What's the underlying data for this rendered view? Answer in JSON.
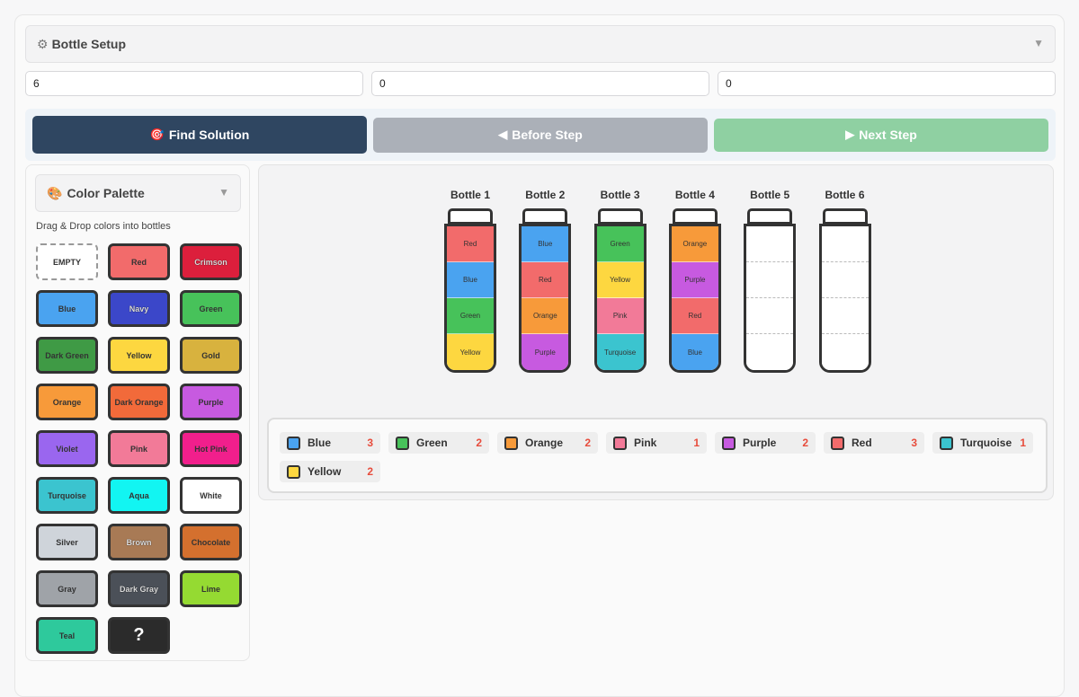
{
  "setup": {
    "icon": "gear-icon",
    "title": "Bottle Setup"
  },
  "inputs": [
    "6",
    "0",
    "0"
  ],
  "actions": {
    "find": {
      "icon": "target-icon",
      "label": "Find Solution"
    },
    "before": {
      "icon": "play-left-icon",
      "label": "Before Step"
    },
    "next": {
      "icon": "play-right-icon",
      "label": "Next Step"
    }
  },
  "palette": {
    "icon": "palette-icon",
    "title": "Color Palette",
    "hint": "Drag & Drop colors into bottles",
    "swatches": [
      {
        "label": "EMPTY",
        "color": "#ffffff"
      },
      {
        "label": "Red",
        "color": "#f26b6b"
      },
      {
        "label": "Crimson",
        "color": "#dc1f3c"
      },
      {
        "label": "Blue",
        "color": "#4aa3f0"
      },
      {
        "label": "Navy",
        "color": "#3b47c9"
      },
      {
        "label": "Green",
        "color": "#47c25a"
      },
      {
        "label": "Dark Green",
        "color": "#3f9a45"
      },
      {
        "label": "Yellow",
        "color": "#fdd740"
      },
      {
        "label": "Gold",
        "color": "#d8b23e"
      },
      {
        "label": "Orange",
        "color": "#f79a3a"
      },
      {
        "label": "Dark Orange",
        "color": "#f26a3a"
      },
      {
        "label": "Purple",
        "color": "#c75ae0"
      },
      {
        "label": "Violet",
        "color": "#9a66ef"
      },
      {
        "label": "Pink",
        "color": "#f27a98"
      },
      {
        "label": "Hot Pink",
        "color": "#f11f8c"
      },
      {
        "label": "Turquoise",
        "color": "#3bc4cf"
      },
      {
        "label": "Aqua",
        "color": "#12f5f2"
      },
      {
        "label": "White",
        "color": "#ffffff"
      },
      {
        "label": "Silver",
        "color": "#cfd4da"
      },
      {
        "label": "Brown",
        "color": "#a87a55"
      },
      {
        "label": "Chocolate",
        "color": "#d4702e"
      },
      {
        "label": "Gray",
        "color": "#9fa3a8"
      },
      {
        "label": "Dark Gray",
        "color": "#4b5058"
      },
      {
        "label": "Lime",
        "color": "#95da32"
      },
      {
        "label": "Teal",
        "color": "#2ec99c"
      },
      {
        "label": "?",
        "color": "#2b2b2b"
      }
    ]
  },
  "bottles": [
    {
      "label": "Bottle 1",
      "layers": [
        {
          "name": "Red",
          "color": "#f26b6b"
        },
        {
          "name": "Blue",
          "color": "#4aa3f0"
        },
        {
          "name": "Green",
          "color": "#47c25a"
        },
        {
          "name": "Yellow",
          "color": "#fdd740"
        }
      ]
    },
    {
      "label": "Bottle 2",
      "layers": [
        {
          "name": "Blue",
          "color": "#4aa3f0"
        },
        {
          "name": "Red",
          "color": "#f26b6b"
        },
        {
          "name": "Orange",
          "color": "#f79a3a"
        },
        {
          "name": "Purple",
          "color": "#c75ae0"
        }
      ]
    },
    {
      "label": "Bottle 3",
      "layers": [
        {
          "name": "Green",
          "color": "#47c25a"
        },
        {
          "name": "Yellow",
          "color": "#fdd740"
        },
        {
          "name": "Pink",
          "color": "#f27a98"
        },
        {
          "name": "Turquoise",
          "color": "#3bc4cf"
        }
      ]
    },
    {
      "label": "Bottle 4",
      "layers": [
        {
          "name": "Orange",
          "color": "#f79a3a"
        },
        {
          "name": "Purple",
          "color": "#c75ae0"
        },
        {
          "name": "Red",
          "color": "#f26b6b"
        },
        {
          "name": "Blue",
          "color": "#4aa3f0"
        }
      ]
    },
    {
      "label": "Bottle 5",
      "layers": []
    },
    {
      "label": "Bottle 6",
      "layers": []
    }
  ],
  "summary": [
    {
      "name": "Blue",
      "color": "#4aa3f0",
      "count": "3"
    },
    {
      "name": "Green",
      "color": "#47c25a",
      "count": "2"
    },
    {
      "name": "Orange",
      "color": "#f79a3a",
      "count": "2"
    },
    {
      "name": "Pink",
      "color": "#f27a98",
      "count": "1"
    },
    {
      "name": "Purple",
      "color": "#c75ae0",
      "count": "2"
    },
    {
      "name": "Red",
      "color": "#f26b6b",
      "count": "3"
    },
    {
      "name": "Turquoise",
      "color": "#3bc4cf",
      "count": "1"
    },
    {
      "name": "Yellow",
      "color": "#fdd740",
      "count": "2"
    }
  ]
}
